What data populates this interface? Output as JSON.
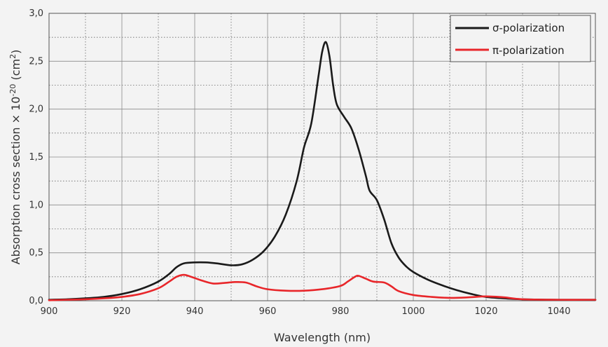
{
  "chart_data": {
    "type": "line",
    "xlabel": "Wavelength (nm)",
    "ylabel": "Absorption cross section × 10",
    "ylabel_exponent": "-20",
    "ylabel_unit_open": " (cm",
    "ylabel_unit_exponent": "2",
    "ylabel_unit_close": ")",
    "xlim": [
      900,
      1050
    ],
    "ylim": [
      0,
      3.0
    ],
    "x_ticks": [
      {
        "value": 900,
        "label": "900"
      },
      {
        "value": 920,
        "label": "920"
      },
      {
        "value": 940,
        "label": "940"
      },
      {
        "value": 960,
        "label": "960"
      },
      {
        "value": 980,
        "label": "980"
      },
      {
        "value": 1000,
        "label": "1000"
      },
      {
        "value": 1020,
        "label": "1020"
      },
      {
        "value": 1040,
        "label": "1040"
      }
    ],
    "y_ticks": [
      {
        "value": 0,
        "label": "0,0"
      },
      {
        "value": 0.5,
        "label": "0,5"
      },
      {
        "value": 1.0,
        "label": "1,0"
      },
      {
        "value": 1.5,
        "label": "1,5"
      },
      {
        "value": 2.0,
        "label": "2,0"
      },
      {
        "value": 2.5,
        "label": "2,5"
      },
      {
        "value": 3.0,
        "label": "3,0"
      }
    ],
    "grid": {
      "major_solid": true,
      "minor_dotted": true,
      "x_minor_step": 10,
      "y_minor_step": 0.25
    },
    "legend_position": "top-right",
    "series": [
      {
        "name": "σ-polarization",
        "color": "#1a1a1a",
        "points": [
          [
            900,
            0.01
          ],
          [
            905,
            0.015
          ],
          [
            910,
            0.025
          ],
          [
            915,
            0.04
          ],
          [
            920,
            0.07
          ],
          [
            925,
            0.12
          ],
          [
            930,
            0.2
          ],
          [
            933,
            0.28
          ],
          [
            935,
            0.35
          ],
          [
            937,
            0.39
          ],
          [
            940,
            0.4
          ],
          [
            943,
            0.4
          ],
          [
            946,
            0.39
          ],
          [
            950,
            0.37
          ],
          [
            953,
            0.38
          ],
          [
            956,
            0.43
          ],
          [
            959,
            0.52
          ],
          [
            962,
            0.67
          ],
          [
            965,
            0.9
          ],
          [
            968,
            1.25
          ],
          [
            970,
            1.6
          ],
          [
            972,
            1.85
          ],
          [
            974,
            2.35
          ],
          [
            975,
            2.6
          ],
          [
            976,
            2.7
          ],
          [
            977,
            2.55
          ],
          [
            978,
            2.25
          ],
          [
            979,
            2.05
          ],
          [
            981,
            1.92
          ],
          [
            983,
            1.8
          ],
          [
            985,
            1.58
          ],
          [
            987,
            1.3
          ],
          [
            988,
            1.15
          ],
          [
            990,
            1.05
          ],
          [
            992,
            0.85
          ],
          [
            994,
            0.6
          ],
          [
            996,
            0.45
          ],
          [
            998,
            0.36
          ],
          [
            1000,
            0.3
          ],
          [
            1004,
            0.22
          ],
          [
            1008,
            0.16
          ],
          [
            1012,
            0.11
          ],
          [
            1016,
            0.07
          ],
          [
            1020,
            0.04
          ],
          [
            1025,
            0.025
          ],
          [
            1030,
            0.015
          ],
          [
            1040,
            0.01
          ],
          [
            1050,
            0.01
          ]
        ]
      },
      {
        "name": "π-polarization",
        "color": "#e8262a",
        "points": [
          [
            900,
            0.005
          ],
          [
            905,
            0.01
          ],
          [
            910,
            0.015
          ],
          [
            915,
            0.025
          ],
          [
            920,
            0.04
          ],
          [
            925,
            0.07
          ],
          [
            930,
            0.13
          ],
          [
            933,
            0.2
          ],
          [
            935,
            0.25
          ],
          [
            937,
            0.27
          ],
          [
            939,
            0.25
          ],
          [
            942,
            0.21
          ],
          [
            945,
            0.18
          ],
          [
            948,
            0.185
          ],
          [
            951,
            0.195
          ],
          [
            954,
            0.19
          ],
          [
            957,
            0.15
          ],
          [
            960,
            0.12
          ],
          [
            965,
            0.105
          ],
          [
            970,
            0.105
          ],
          [
            975,
            0.12
          ],
          [
            980,
            0.155
          ],
          [
            982,
            0.2
          ],
          [
            984,
            0.25
          ],
          [
            985,
            0.26
          ],
          [
            987,
            0.23
          ],
          [
            989,
            0.2
          ],
          [
            992,
            0.19
          ],
          [
            994,
            0.15
          ],
          [
            996,
            0.1
          ],
          [
            1000,
            0.06
          ],
          [
            1005,
            0.04
          ],
          [
            1010,
            0.03
          ],
          [
            1015,
            0.035
          ],
          [
            1020,
            0.045
          ],
          [
            1025,
            0.035
          ],
          [
            1030,
            0.015
          ],
          [
            1040,
            0.01
          ],
          [
            1050,
            0.01
          ]
        ]
      }
    ]
  }
}
